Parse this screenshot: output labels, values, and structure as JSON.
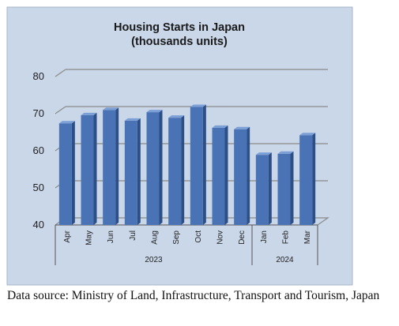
{
  "chart_data": {
    "type": "bar",
    "title": "Housing Starts in Japan",
    "subtitle": "(thousands units)",
    "categories": [
      "Apr",
      "May",
      "Jun",
      "Jul",
      "Aug",
      "Sep",
      "Oct",
      "Nov",
      "Dec",
      "Jan",
      "Feb",
      "Mar"
    ],
    "values": [
      67.4,
      69.6,
      71.0,
      68.1,
      70.4,
      68.9,
      71.8,
      66.2,
      65.8,
      58.9,
      59.2,
      64.2
    ],
    "groups": [
      {
        "label": "2023",
        "start": 0,
        "end": 8
      },
      {
        "label": "2024",
        "start": 9,
        "end": 11
      }
    ],
    "yticks": [
      40,
      50,
      60,
      70,
      80
    ],
    "ylim": [
      40,
      80
    ],
    "grid": true,
    "legend": "none",
    "colors": {
      "plot_background": "#c9d7e9",
      "bar_face": "#4a73b5",
      "bar_top": "#7c9fd6",
      "bar_side": "#2d4f87",
      "gridline": "#8a8a8a"
    }
  },
  "caption": "Data source: Ministry of Land, Infrastructure, Transport and Tourism, Japan"
}
